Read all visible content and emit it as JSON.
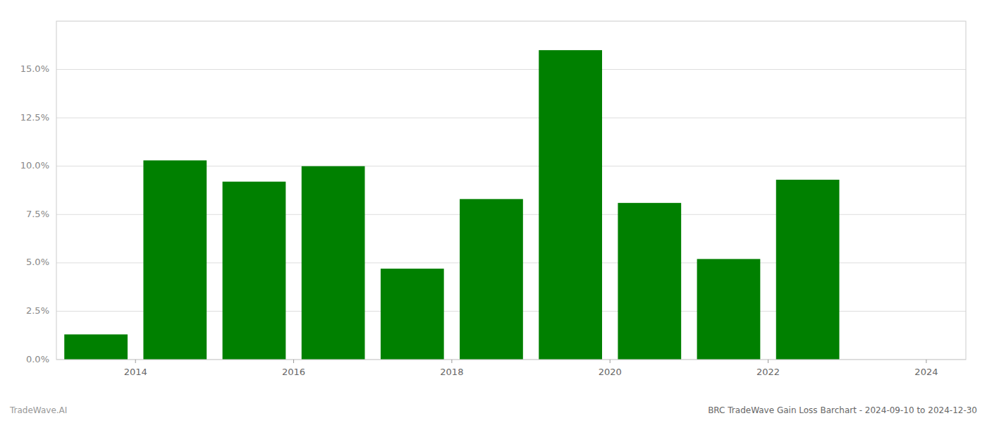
{
  "chart_data": {
    "type": "bar",
    "x": [
      2014,
      2015,
      2016,
      2017,
      2018,
      2019,
      2020,
      2021,
      2022,
      2023
    ],
    "values": [
      0.013,
      0.103,
      0.092,
      0.1,
      0.047,
      0.083,
      0.16,
      0.081,
      0.052,
      0.093
    ],
    "color": "#008000",
    "xlim": [
      2013.5,
      2025.0
    ],
    "xticks": [
      {
        "value": 2014.5,
        "label": "2014"
      },
      {
        "value": 2016.5,
        "label": "2016"
      },
      {
        "value": 2018.5,
        "label": "2018"
      },
      {
        "value": 2020.5,
        "label": "2020"
      },
      {
        "value": 2022.5,
        "label": "2022"
      },
      {
        "value": 2024.5,
        "label": "2024"
      }
    ],
    "ylim": [
      0,
      0.175
    ],
    "yticks": [
      {
        "value": 0.0,
        "label": "0.0%"
      },
      {
        "value": 0.025,
        "label": "2.5%"
      },
      {
        "value": 0.05,
        "label": "5.0%"
      },
      {
        "value": 0.075,
        "label": "7.5%"
      },
      {
        "value": 0.1,
        "label": "10.0%"
      },
      {
        "value": 0.125,
        "label": "12.5%"
      },
      {
        "value": 0.15,
        "label": "15.0%"
      }
    ],
    "grid": true,
    "annotations": [
      "TradeWave.AI",
      "BRC TradeWave Gain Loss Barchart - 2024-09-10 to 2024-12-30"
    ]
  }
}
